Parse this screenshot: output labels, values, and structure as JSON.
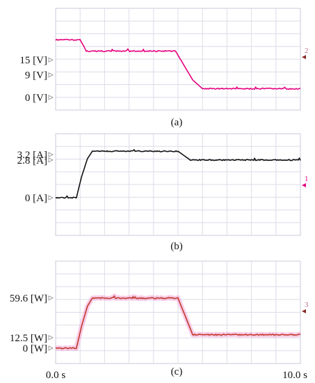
{
  "chart_data": [
    {
      "type": "line",
      "caption": "(a)",
      "unit": "V",
      "ytick_labels": [
        "15 [V]",
        "9 [V]",
        "0 [V]"
      ],
      "ytick_values": [
        15,
        9,
        0
      ],
      "marker_label": "2",
      "colors": {
        "line": "#e6007e"
      },
      "series": [
        {
          "x": [
            0,
            1.0,
            1.15,
            1.25,
            4.9,
            5.6,
            6.0,
            10.0
          ],
          "y": [
            23,
            23,
            20.5,
            18.5,
            18.5,
            7,
            3.5,
            3.5
          ]
        }
      ],
      "xlim": [
        0,
        10
      ],
      "grid": true
    },
    {
      "type": "line",
      "caption": "(b)",
      "unit": "A",
      "ytick_labels": [
        "3.2 [A]",
        "2.8 [A]",
        "0 [A]"
      ],
      "ytick_values": [
        3.2,
        2.8,
        0
      ],
      "marker_label": "1",
      "colors": {
        "line": "#111111"
      },
      "series": [
        {
          "x": [
            0,
            0.85,
            1.05,
            1.3,
            1.5,
            5.0,
            5.5,
            10.0
          ],
          "y": [
            0,
            0,
            1.5,
            2.9,
            3.45,
            3.45,
            2.8,
            2.8
          ]
        }
      ],
      "xlim": [
        0,
        10
      ],
      "grid": true
    },
    {
      "type": "line",
      "caption": "(c)",
      "unit": "W",
      "ytick_labels": [
        "59.6 [W]",
        "12.5 [W]",
        "0 [W]"
      ],
      "ytick_values": [
        59.6,
        12.5,
        0
      ],
      "marker_label": "3",
      "colors": {
        "line": "#c0392b",
        "band": "#f4a6d7"
      },
      "series": [
        {
          "x": [
            0,
            0.85,
            1.05,
            1.3,
            1.5,
            5.0,
            5.6,
            10.0
          ],
          "y": [
            0,
            0,
            25,
            50,
            59.6,
            59.6,
            16,
            16
          ]
        }
      ],
      "xlim": [
        0,
        10
      ],
      "xtick_labels": [
        "0.0 s",
        "10.0 s"
      ],
      "grid": true
    }
  ]
}
